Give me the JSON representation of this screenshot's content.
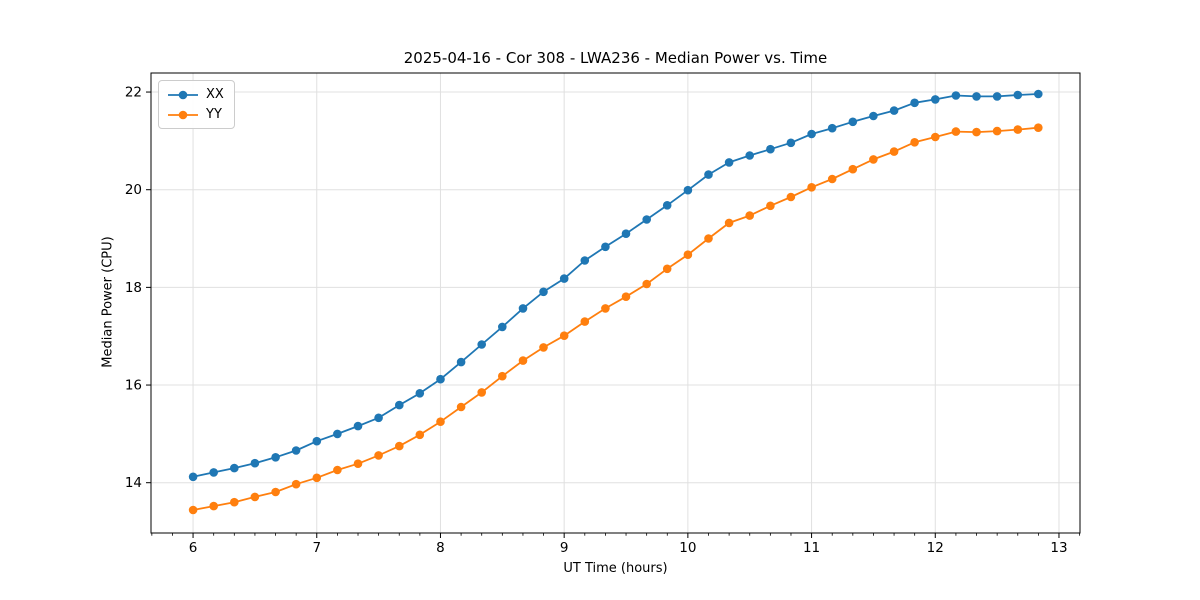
{
  "chart_data": {
    "type": "line",
    "title": "2025-04-16 - Cor 308 - LWA236 - Median Power vs. Time",
    "xlabel": "UT Time (hours)",
    "ylabel": "Median Power (CPU)",
    "xlim": [
      5.66,
      13.17
    ],
    "ylim": [
      12.97,
      22.39
    ],
    "xticks": [
      6,
      7,
      8,
      9,
      10,
      11,
      12,
      13
    ],
    "yticks": [
      14,
      16,
      18,
      20,
      22
    ],
    "x_minor_step": 0.16667,
    "grid": true,
    "legend_position": "upper left",
    "x": [
      6.0,
      6.167,
      6.333,
      6.5,
      6.667,
      6.833,
      7.0,
      7.167,
      7.333,
      7.5,
      7.667,
      7.833,
      8.0,
      8.167,
      8.333,
      8.5,
      8.667,
      8.833,
      9.0,
      9.167,
      9.333,
      9.5,
      9.667,
      9.833,
      10.0,
      10.167,
      10.333,
      10.5,
      10.667,
      10.833,
      11.0,
      11.167,
      11.333,
      11.5,
      11.667,
      11.833,
      12.0,
      12.167,
      12.333,
      12.5,
      12.667,
      12.833
    ],
    "series": [
      {
        "name": "XX",
        "color": "#1f77b4",
        "values": [
          14.12,
          14.21,
          14.3,
          14.4,
          14.52,
          14.66,
          14.85,
          15.0,
          15.16,
          15.33,
          15.59,
          15.83,
          16.12,
          16.47,
          16.83,
          17.19,
          17.57,
          17.91,
          18.18,
          18.55,
          18.83,
          19.1,
          19.39,
          19.68,
          19.99,
          20.31,
          20.56,
          20.7,
          20.83,
          20.96,
          21.14,
          21.26,
          21.39,
          21.51,
          21.62,
          21.78,
          21.85,
          21.93,
          21.91,
          21.91,
          21.94,
          21.96
        ]
      },
      {
        "name": "YY",
        "color": "#ff7f0e",
        "values": [
          13.44,
          13.52,
          13.6,
          13.71,
          13.81,
          13.97,
          14.1,
          14.26,
          14.39,
          14.56,
          14.75,
          14.98,
          15.25,
          15.55,
          15.85,
          16.18,
          16.5,
          16.77,
          17.01,
          17.3,
          17.57,
          17.81,
          18.07,
          18.38,
          18.67,
          19.0,
          19.32,
          19.47,
          19.67,
          19.85,
          20.05,
          20.22,
          20.42,
          20.62,
          20.78,
          20.97,
          21.08,
          21.19,
          21.18,
          21.2,
          21.23,
          21.27
        ]
      }
    ],
    "style": {
      "grid_color": "#e0e0e0",
      "spine_color": "#000000",
      "tick_color": "#000000",
      "marker_radius": 4.3,
      "line_width": 1.8
    }
  }
}
